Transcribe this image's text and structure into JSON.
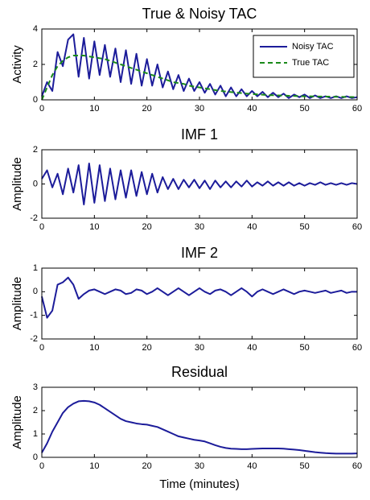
{
  "chart_data": [
    {
      "type": "line",
      "title": "True & Noisy TAC",
      "ylabel": "Activity",
      "x": [
        0,
        1,
        2,
        3,
        4,
        5,
        6,
        7,
        8,
        9,
        10,
        11,
        12,
        13,
        14,
        15,
        16,
        17,
        18,
        19,
        20,
        21,
        22,
        23,
        24,
        25,
        26,
        27,
        28,
        29,
        30,
        31,
        32,
        33,
        34,
        35,
        36,
        37,
        38,
        39,
        40,
        41,
        42,
        43,
        44,
        45,
        46,
        47,
        48,
        49,
        50,
        51,
        52,
        53,
        54,
        55,
        56,
        57,
        58,
        59,
        60
      ],
      "xlim": [
        0,
        60
      ],
      "xticks": [
        0,
        10,
        20,
        30,
        40,
        50,
        60
      ],
      "ylim": [
        0,
        4
      ],
      "yticks": [
        0,
        2,
        4
      ],
      "legend": "upper right",
      "series": [
        {
          "name": "Noisy TAC",
          "color": "#1c1c9a",
          "linestyle": "solid",
          "values": [
            0.2,
            1.0,
            0.5,
            2.7,
            1.9,
            3.4,
            3.7,
            1.3,
            3.5,
            1.2,
            3.3,
            1.4,
            3.1,
            1.3,
            2.9,
            1.0,
            2.8,
            0.9,
            2.6,
            0.8,
            2.3,
            0.8,
            2.0,
            0.7,
            1.6,
            0.6,
            1.4,
            0.5,
            1.2,
            0.5,
            1.0,
            0.4,
            0.9,
            0.3,
            0.8,
            0.2,
            0.7,
            0.2,
            0.6,
            0.2,
            0.5,
            0.2,
            0.45,
            0.15,
            0.4,
            0.15,
            0.35,
            0.1,
            0.3,
            0.15,
            0.3,
            0.1,
            0.25,
            0.1,
            0.2,
            0.1,
            0.2,
            0.1,
            0.2,
            0.1,
            0.15
          ]
        },
        {
          "name": "True TAC",
          "color": "#1a8a1a",
          "linestyle": "dashed",
          "values": [
            0,
            0.7,
            1.4,
            1.9,
            2.2,
            2.4,
            2.5,
            2.5,
            2.5,
            2.45,
            2.4,
            2.35,
            2.3,
            2.2,
            2.1,
            2.0,
            1.9,
            1.8,
            1.7,
            1.6,
            1.5,
            1.4,
            1.3,
            1.2,
            1.1,
            1.0,
            0.95,
            0.9,
            0.8,
            0.75,
            0.7,
            0.65,
            0.6,
            0.55,
            0.5,
            0.47,
            0.44,
            0.41,
            0.38,
            0.35,
            0.33,
            0.31,
            0.29,
            0.27,
            0.26,
            0.25,
            0.24,
            0.23,
            0.22,
            0.21,
            0.2,
            0.2,
            0.19,
            0.19,
            0.18,
            0.18,
            0.17,
            0.17,
            0.16,
            0.16,
            0.15
          ]
        }
      ]
    },
    {
      "type": "line",
      "title": "IMF 1",
      "ylabel": "Amplitude",
      "x": [
        0,
        1,
        2,
        3,
        4,
        5,
        6,
        7,
        8,
        9,
        10,
        11,
        12,
        13,
        14,
        15,
        16,
        17,
        18,
        19,
        20,
        21,
        22,
        23,
        24,
        25,
        26,
        27,
        28,
        29,
        30,
        31,
        32,
        33,
        34,
        35,
        36,
        37,
        38,
        39,
        40,
        41,
        42,
        43,
        44,
        45,
        46,
        47,
        48,
        49,
        50,
        51,
        52,
        53,
        54,
        55,
        56,
        57,
        58,
        59,
        60
      ],
      "xlim": [
        0,
        60
      ],
      "xticks": [
        0,
        10,
        20,
        30,
        40,
        50,
        60
      ],
      "ylim": [
        -2,
        2
      ],
      "yticks": [
        -2,
        0,
        2
      ],
      "series": [
        {
          "color": "#1c1c9a",
          "linestyle": "solid",
          "values": [
            0.3,
            0.8,
            -0.2,
            0.6,
            -0.6,
            0.9,
            -0.5,
            1.1,
            -1.2,
            1.2,
            -1.1,
            1.1,
            -1.0,
            0.9,
            -0.9,
            0.8,
            -0.8,
            0.8,
            -0.7,
            0.7,
            -0.6,
            0.6,
            -0.5,
            0.4,
            -0.3,
            0.3,
            -0.3,
            0.25,
            -0.2,
            0.25,
            -0.25,
            0.2,
            -0.3,
            0.2,
            -0.2,
            0.15,
            -0.2,
            0.15,
            -0.15,
            0.2,
            -0.15,
            0.1,
            -0.1,
            0.15,
            -0.1,
            0.1,
            -0.1,
            0.1,
            -0.1,
            0.05,
            -0.1,
            0.05,
            -0.05,
            0.1,
            -0.05,
            0.05,
            -0.05,
            0.05,
            -0.05,
            0.05,
            0
          ]
        }
      ]
    },
    {
      "type": "line",
      "title": "IMF 2",
      "ylabel": "Amplitude",
      "x": [
        0,
        1,
        2,
        3,
        4,
        5,
        6,
        7,
        8,
        9,
        10,
        11,
        12,
        13,
        14,
        15,
        16,
        17,
        18,
        19,
        20,
        21,
        22,
        23,
        24,
        25,
        26,
        27,
        28,
        29,
        30,
        31,
        32,
        33,
        34,
        35,
        36,
        37,
        38,
        39,
        40,
        41,
        42,
        43,
        44,
        45,
        46,
        47,
        48,
        49,
        50,
        51,
        52,
        53,
        54,
        55,
        56,
        57,
        58,
        59,
        60
      ],
      "xlim": [
        0,
        60
      ],
      "xticks": [
        0,
        10,
        20,
        30,
        40,
        50,
        60
      ],
      "ylim": [
        -2,
        1
      ],
      "yticks": [
        -2,
        -1,
        0,
        1
      ],
      "series": [
        {
          "color": "#1c1c9a",
          "linestyle": "solid",
          "values": [
            -0.2,
            -1.1,
            -0.8,
            0.3,
            0.4,
            0.6,
            0.3,
            -0.3,
            -0.1,
            0.05,
            0.1,
            0,
            -0.1,
            0,
            0.1,
            0.05,
            -0.1,
            -0.05,
            0.1,
            0.05,
            -0.1,
            0,
            0.15,
            0,
            -0.15,
            0,
            0.15,
            0,
            -0.15,
            0,
            0.15,
            0,
            -0.1,
            0.05,
            0.1,
            0,
            -0.15,
            0,
            0.15,
            0,
            -0.2,
            0,
            0.1,
            0,
            -0.1,
            0,
            0.1,
            0,
            -0.1,
            0,
            0.05,
            0,
            -0.05,
            0,
            0.05,
            -0.05,
            0,
            0.05,
            -0.05,
            0,
            0
          ]
        }
      ]
    },
    {
      "type": "line",
      "title": "Residual",
      "ylabel": "Amplitude",
      "xlabel": "Time (minutes)",
      "x": [
        0,
        1,
        2,
        3,
        4,
        5,
        6,
        7,
        8,
        9,
        10,
        11,
        12,
        13,
        14,
        15,
        16,
        17,
        18,
        19,
        20,
        21,
        22,
        23,
        24,
        25,
        26,
        27,
        28,
        29,
        30,
        31,
        32,
        33,
        34,
        35,
        36,
        37,
        38,
        39,
        40,
        41,
        42,
        43,
        44,
        45,
        46,
        47,
        48,
        49,
        50,
        51,
        52,
        53,
        54,
        55,
        56,
        57,
        58,
        59,
        60
      ],
      "xlim": [
        0,
        60
      ],
      "xticks": [
        0,
        10,
        20,
        30,
        40,
        50,
        60
      ],
      "ylim": [
        0,
        3
      ],
      "yticks": [
        0,
        1,
        2,
        3
      ],
      "series": [
        {
          "color": "#1c1c9a",
          "linestyle": "solid",
          "values": [
            0.2,
            0.6,
            1.1,
            1.5,
            1.9,
            2.15,
            2.3,
            2.4,
            2.42,
            2.4,
            2.35,
            2.25,
            2.1,
            1.95,
            1.8,
            1.65,
            1.55,
            1.5,
            1.45,
            1.42,
            1.4,
            1.35,
            1.3,
            1.2,
            1.1,
            1.0,
            0.9,
            0.85,
            0.8,
            0.75,
            0.72,
            0.68,
            0.6,
            0.52,
            0.45,
            0.4,
            0.37,
            0.36,
            0.35,
            0.35,
            0.36,
            0.37,
            0.38,
            0.38,
            0.38,
            0.38,
            0.37,
            0.35,
            0.33,
            0.31,
            0.28,
            0.25,
            0.22,
            0.2,
            0.18,
            0.17,
            0.16,
            0.16,
            0.16,
            0.16,
            0.17
          ]
        }
      ]
    }
  ]
}
